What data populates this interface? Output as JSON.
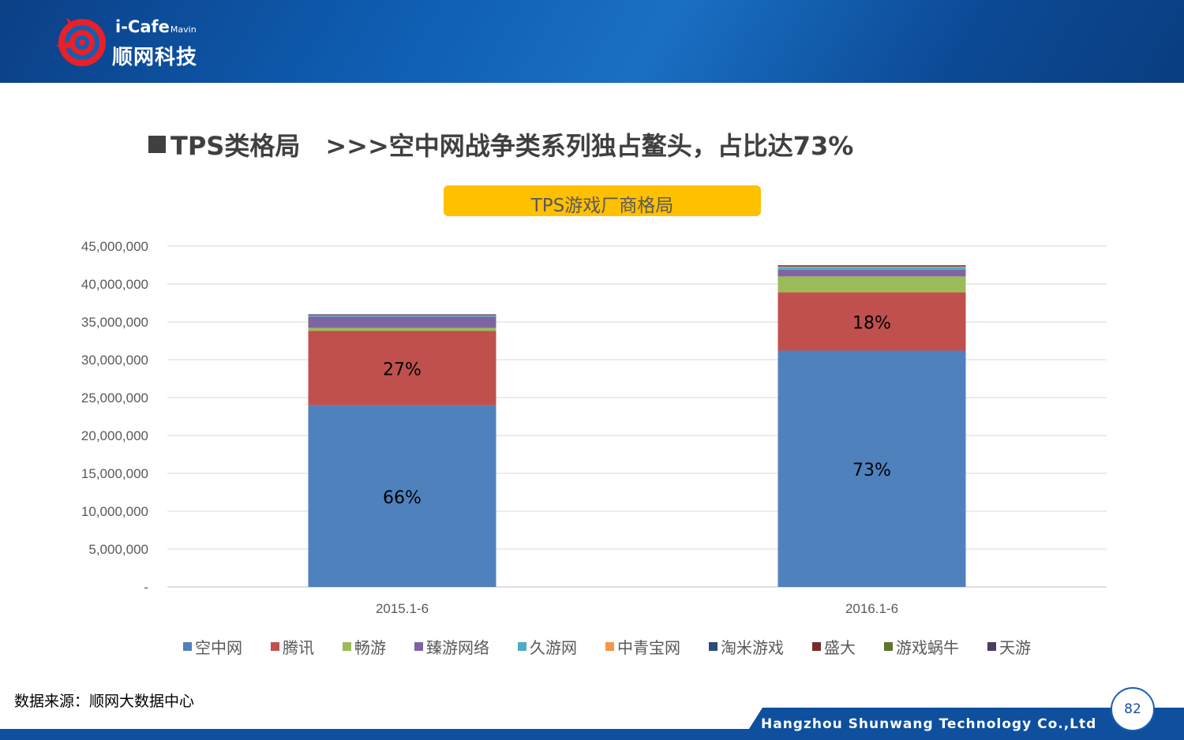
{
  "brand": {
    "logo_en": "i-Cafe",
    "logo_en_small": "Mavin",
    "logo_cn": "顺网科技"
  },
  "heading": "TPS类格局　>>>空中网战争类系列独占鳌头，占比达73%",
  "source": "数据来源：顺网大数据中心",
  "company": "Hangzhou Shunwang Technology Co.,Ltd",
  "page_number": "82",
  "chart_data": {
    "type": "bar",
    "stacked": true,
    "title": "TPS游戏厂商格局",
    "categories": [
      "2015.1-6",
      "2016.1-6"
    ],
    "ylim": [
      0,
      45000000
    ],
    "y_ticks": [
      "-",
      "5,000,000",
      "10,000,000",
      "15,000,000",
      "20,000,000",
      "25,000,000",
      "30,000,000",
      "35,000,000",
      "40,000,000",
      "45,000,000"
    ],
    "grid": true,
    "legend_position": "bottom",
    "series": [
      {
        "name": "空中网",
        "color": "#4f81bd",
        "values": [
          24000000,
          31200000
        ],
        "labels": [
          "66%",
          "73%"
        ]
      },
      {
        "name": "腾讯",
        "color": "#c0504d",
        "values": [
          9800000,
          7700000
        ],
        "labels": [
          "27%",
          "18%"
        ]
      },
      {
        "name": "畅游",
        "color": "#9bbb59",
        "values": [
          400000,
          2100000
        ],
        "labels": [
          "",
          ""
        ]
      },
      {
        "name": "臻游网络",
        "color": "#8064a2",
        "values": [
          1500000,
          900000
        ],
        "labels": [
          "",
          ""
        ]
      },
      {
        "name": "久游网",
        "color": "#4bacc6",
        "values": [
          200000,
          300000
        ],
        "labels": [
          "",
          ""
        ]
      },
      {
        "name": "中青宝网",
        "color": "#f79646",
        "values": [
          20000,
          100000
        ],
        "labels": [
          "",
          ""
        ]
      },
      {
        "name": "淘米游戏",
        "color": "#2c4d75",
        "values": [
          30000,
          50000
        ],
        "labels": [
          "",
          ""
        ]
      },
      {
        "name": "盛大",
        "color": "#772c2a",
        "values": [
          20000,
          60000
        ],
        "labels": [
          "",
          ""
        ]
      },
      {
        "name": "游戏蜗牛",
        "color": "#5f7530",
        "values": [
          20000,
          40000
        ],
        "labels": [
          "",
          ""
        ]
      },
      {
        "name": "天游",
        "color": "#4d3b62",
        "values": [
          10000,
          30000
        ],
        "labels": [
          "",
          ""
        ]
      }
    ]
  }
}
